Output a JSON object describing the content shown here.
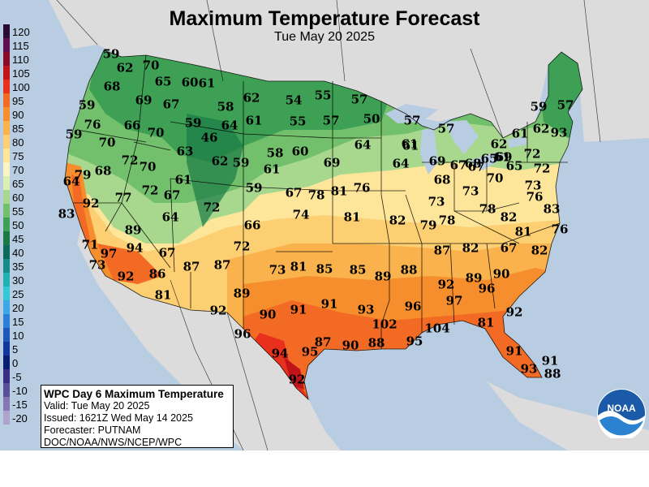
{
  "title": "Maximum Temperature Forecast",
  "subtitle": "Tue May 20 2025",
  "legend": {
    "items": [
      {
        "label": "120",
        "color": "#2a0a30"
      },
      {
        "label": "115",
        "color": "#5e1050"
      },
      {
        "label": "110",
        "color": "#8a0a2a"
      },
      {
        "label": "105",
        "color": "#c01418"
      },
      {
        "label": "100",
        "color": "#e8301c"
      },
      {
        "label": "95",
        "color": "#f26a24"
      },
      {
        "label": "90",
        "color": "#f68e2e"
      },
      {
        "label": "85",
        "color": "#f9b24c"
      },
      {
        "label": "80",
        "color": "#fbcf72"
      },
      {
        "label": "75",
        "color": "#fde69a"
      },
      {
        "label": "70",
        "color": "#fbf5c6"
      },
      {
        "label": "65",
        "color": "#d9efb4"
      },
      {
        "label": "60",
        "color": "#a8d88e"
      },
      {
        "label": "55",
        "color": "#72bf6c"
      },
      {
        "label": "50",
        "color": "#3ea055"
      },
      {
        "label": "45",
        "color": "#1a7a46"
      },
      {
        "label": "40",
        "color": "#0e6a5a"
      },
      {
        "label": "35",
        "color": "#138c8a"
      },
      {
        "label": "30",
        "color": "#1fb2b0"
      },
      {
        "label": "25",
        "color": "#35c8d8"
      },
      {
        "label": "20",
        "color": "#3aa8e6"
      },
      {
        "label": "15",
        "color": "#2a80d8"
      },
      {
        "label": "10",
        "color": "#1c58b8"
      },
      {
        "label": "5",
        "color": "#12369a"
      },
      {
        "label": "0",
        "color": "#0a1e70"
      },
      {
        "label": "-5",
        "color": "#3a2e82"
      },
      {
        "label": "-10",
        "color": "#5a4e9a"
      },
      {
        "label": "-15",
        "color": "#8478b4"
      },
      {
        "label": "-20",
        "color": "#aca4cc"
      }
    ]
  },
  "info_box": {
    "header": "WPC Day 6 Maximum Temperature",
    "valid": "Valid: Tue May 20 2025",
    "issued": "Issued: 1621Z Wed May 14 2025",
    "forecaster": "Forecaster: PUTNAM",
    "agency": "DOC/NOAA/NWS/NCEP/WPC"
  },
  "logo_text": "NOAA",
  "city_values": [
    "59",
    "62",
    "70",
    "65",
    "60",
    "61",
    "68",
    "69",
    "67",
    "58",
    "62",
    "54",
    "55",
    "57",
    "59",
    "76",
    "66",
    "70",
    "59",
    "64",
    "61",
    "55",
    "57",
    "50",
    "57",
    "57",
    "59",
    "46",
    "63",
    "60",
    "64",
    "61",
    "62",
    "61",
    "62",
    "57",
    "59",
    "70",
    "72",
    "70",
    "62",
    "59",
    "58",
    "69",
    "64",
    "61",
    "65",
    "69",
    "72",
    "93",
    "79",
    "68",
    "61",
    "61",
    "67",
    "68",
    "69",
    "68",
    "67",
    "61",
    "65",
    "70",
    "73",
    "72",
    "64",
    "59",
    "67",
    "78",
    "81",
    "76",
    "73",
    "73",
    "92",
    "77",
    "72",
    "67",
    "72",
    "81",
    "79",
    "82",
    "78",
    "78",
    "76",
    "89",
    "64",
    "66",
    "74",
    "82",
    "83",
    "83",
    "81",
    "71",
    "97",
    "94",
    "67",
    "72",
    "76",
    "67",
    "87",
    "82",
    "82",
    "73",
    "73",
    "81",
    "85",
    "85",
    "89",
    "88",
    "90",
    "92",
    "89",
    "96",
    "92",
    "86",
    "87",
    "87",
    "81",
    "89",
    "92",
    "90",
    "91",
    "91",
    "93",
    "96",
    "97",
    "92",
    "81",
    "102",
    "96",
    "94",
    "95",
    "87",
    "90",
    "88",
    "95",
    "104",
    "91",
    "92",
    "91",
    "93",
    "88"
  ]
}
